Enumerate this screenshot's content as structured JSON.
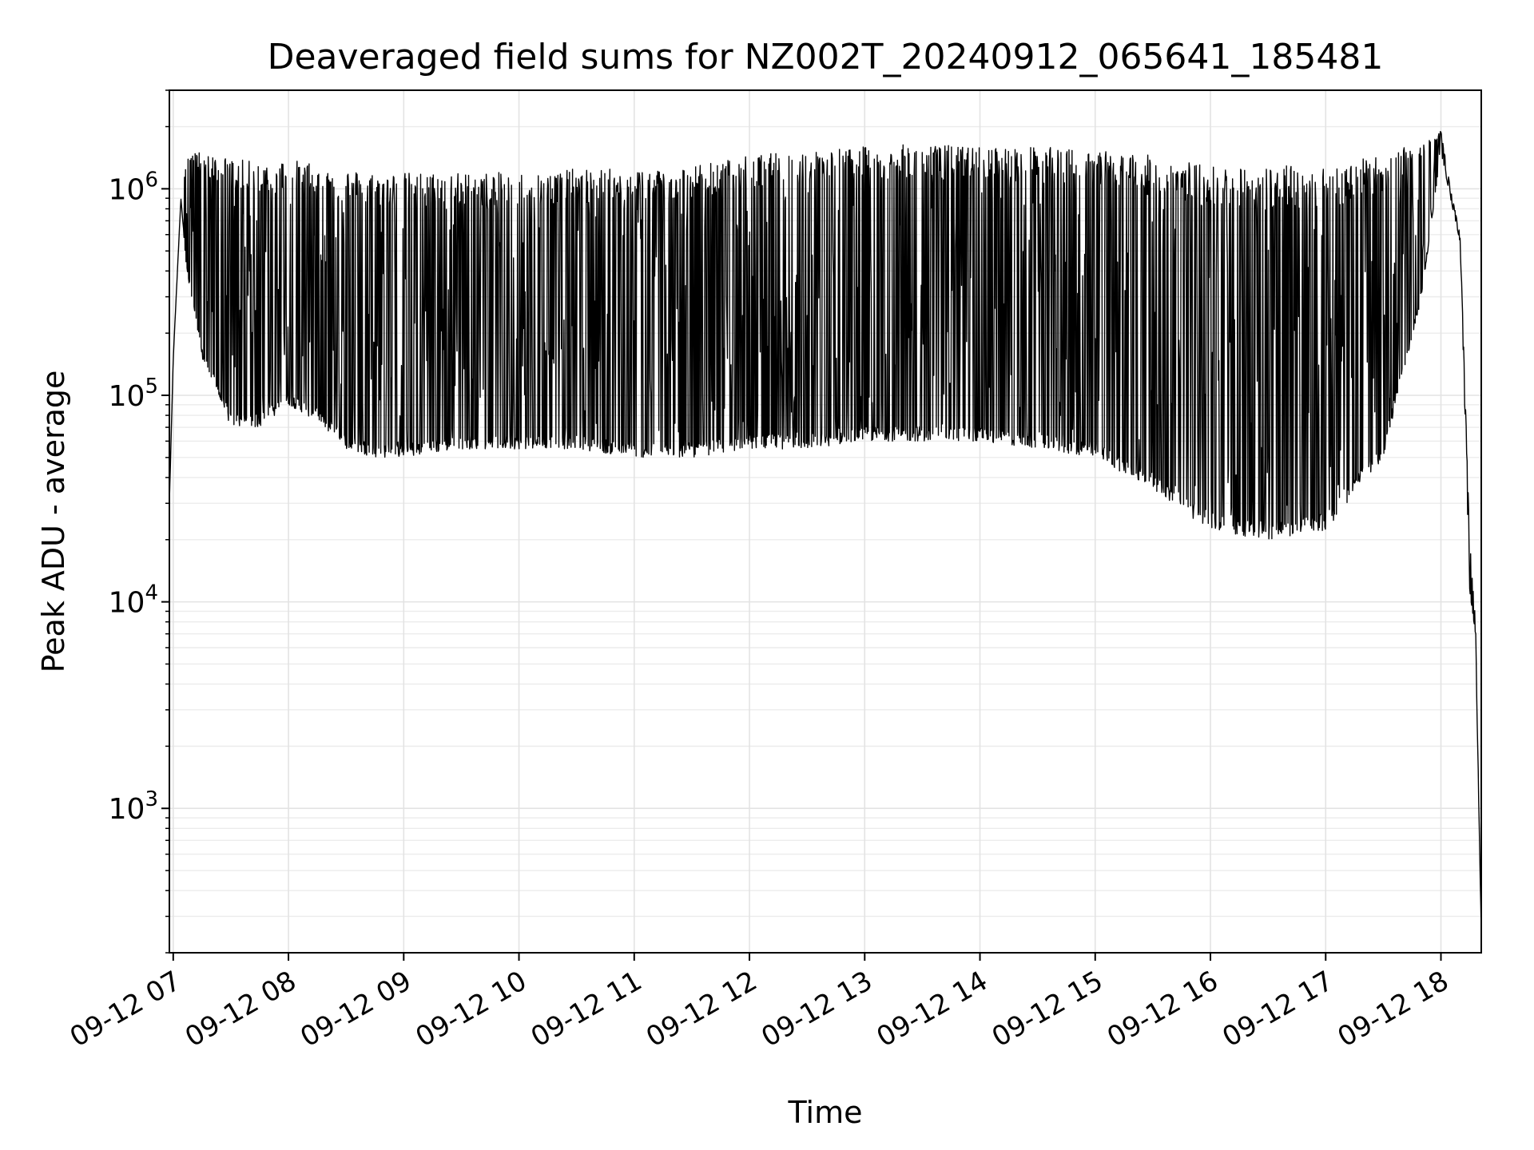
{
  "chart_data": {
    "type": "line",
    "title": "Deaveraged field sums for NZ002T_20240912_065641_185481",
    "xlabel": "Time",
    "ylabel": "Peak ADU - average",
    "y_scale": "log",
    "ylim": [
      200,
      3000000
    ],
    "xlim": [
      "2024-09-12 06:58",
      "2024-09-12 18:21"
    ],
    "grid": "major x and y, minor y",
    "x_tick_labels": [
      "09-12 07",
      "09-12 08",
      "09-12 09",
      "09-12 10",
      "09-12 11",
      "09-12 12",
      "09-12 13",
      "09-12 14",
      "09-12 15",
      "09-12 16",
      "09-12 17",
      "09-12 18"
    ],
    "x_ticks": [
      "2024-09-12 07:00",
      "2024-09-12 08:00",
      "2024-09-12 09:00",
      "2024-09-12 10:00",
      "2024-09-12 11:00",
      "2024-09-12 12:00",
      "2024-09-12 13:00",
      "2024-09-12 14:00",
      "2024-09-12 15:00",
      "2024-09-12 16:00",
      "2024-09-12 17:00",
      "2024-09-12 18:00"
    ],
    "y_tick_values": [
      1000,
      10000,
      100000,
      1000000
    ],
    "y_tick_bases": [
      "10",
      "10",
      "10",
      "10"
    ],
    "y_tick_exponents": [
      "3",
      "4",
      "5",
      "6"
    ],
    "series": [
      {
        "color": "#000000",
        "envelope": {
          "time": [
            "2024-09-12 06:58",
            "2024-09-12 07:00",
            "2024-09-12 07:04",
            "2024-09-12 07:07",
            "2024-09-12 07:15",
            "2024-09-12 07:30",
            "2024-09-12 07:45",
            "2024-09-12 08:00",
            "2024-09-12 08:15",
            "2024-09-12 08:30",
            "2024-09-12 08:45",
            "2024-09-12 09:00",
            "2024-09-12 09:30",
            "2024-09-12 10:00",
            "2024-09-12 10:30",
            "2024-09-12 11:00",
            "2024-09-12 11:30",
            "2024-09-12 12:00",
            "2024-09-12 12:30",
            "2024-09-12 13:00",
            "2024-09-12 13:30",
            "2024-09-12 14:00",
            "2024-09-12 14:30",
            "2024-09-12 15:00",
            "2024-09-12 15:30",
            "2024-09-12 16:00",
            "2024-09-12 16:30",
            "2024-09-12 17:00",
            "2024-09-12 17:30",
            "2024-09-12 17:50",
            "2024-09-12 18:00",
            "2024-09-12 18:05",
            "2024-09-12 18:10",
            "2024-09-12 18:15",
            "2024-09-12 18:18",
            "2024-09-12 18:21"
          ],
          "high": [
            30000,
            150000,
            900000,
            1500000,
            1500000,
            1400000,
            1350000,
            1400000,
            1300000,
            1250000,
            1200000,
            1200000,
            1200000,
            1200000,
            1250000,
            1250000,
            1300000,
            1450000,
            1550000,
            1600000,
            1650000,
            1600000,
            1600000,
            1550000,
            1450000,
            1300000,
            1300000,
            1300000,
            1450000,
            1700000,
            1900000,
            1000000,
            600000,
            20000,
            8000,
            250
          ],
          "low": [
            30000,
            150000,
            900000,
            400000,
            150000,
            70000,
            70000,
            90000,
            75000,
            55000,
            50000,
            50000,
            55000,
            55000,
            55000,
            50000,
            50000,
            55000,
            55000,
            60000,
            60000,
            60000,
            55000,
            50000,
            35000,
            22000,
            20000,
            22000,
            50000,
            300000,
            1500000,
            900000,
            550000,
            11000,
            7000,
            250
          ]
        }
      }
    ]
  }
}
